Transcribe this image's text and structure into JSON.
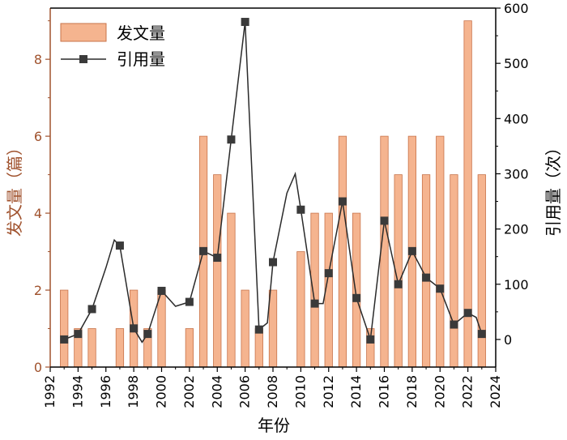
{
  "chart_data": {
    "type": "bar+line",
    "xlabel": "年份",
    "ylabel_left": "发文量（篇）",
    "ylabel_right": "引用量（次）",
    "x_ticks": [
      "1992",
      "1994",
      "1996",
      "1998",
      "2000",
      "2002",
      "2004",
      "2006",
      "2008",
      "2010",
      "2012",
      "2014",
      "2016",
      "2018",
      "2020",
      "2022",
      "2024"
    ],
    "y_left_ticks": [
      "0",
      "2",
      "4",
      "6",
      "8"
    ],
    "y_right_ticks": [
      "0",
      "100",
      "200",
      "300",
      "400",
      "500",
      "600"
    ],
    "xlim": [
      1992,
      2024
    ],
    "ylim_left": [
      0,
      9.33
    ],
    "ylim_right": [
      -50,
      600
    ],
    "colors": {
      "bar_fill": "#f5b48f",
      "bar_stroke": "#c8734a",
      "line": "#2a2a2a",
      "marker": "#3a3a3a",
      "left_axis": "#a0522d",
      "right_axis": "#000000"
    },
    "legend": {
      "placement": "top-left",
      "items": [
        "发文量",
        "引用量"
      ]
    },
    "series": [
      {
        "name": "发文量",
        "kind": "bar",
        "axis": "left",
        "x": [
          1993,
          1994,
          1995,
          1997,
          1998,
          1999,
          2000,
          2002,
          2003,
          2004,
          2005,
          2006,
          2007,
          2008,
          2010,
          2011,
          2012,
          2013,
          2014,
          2015,
          2016,
          2017,
          2018,
          2019,
          2020,
          2021,
          2022,
          2023
        ],
        "values": [
          2,
          1,
          1,
          1,
          2,
          1,
          2,
          1,
          6,
          5,
          4,
          2,
          1,
          2,
          3,
          4,
          4,
          6,
          4,
          1,
          6,
          5,
          6,
          5,
          6,
          5,
          9,
          5
        ]
      },
      {
        "name": "引用量",
        "kind": "line",
        "axis": "right",
        "x": [
          1993,
          1994,
          1995,
          1997,
          1998,
          1999,
          2000,
          2002,
          2003,
          2004,
          2005,
          2006,
          2007,
          2008,
          2010,
          2011,
          2012,
          2013,
          2014,
          2015,
          2016,
          2017,
          2018,
          2019,
          2020,
          2021,
          2022,
          2023
        ],
        "values": [
          0,
          10,
          55,
          170,
          20,
          10,
          88,
          68,
          160,
          148,
          362,
          575,
          18,
          140,
          235,
          65,
          120,
          250,
          75,
          0,
          215,
          100,
          160,
          112,
          92,
          27,
          48,
          10
        ]
      }
    ],
    "line_path_extra": {
      "comment_free": true,
      "x": [
        1993,
        1994,
        1995,
        1996,
        1996.6,
        1997,
        1998,
        1998.6,
        1999,
        2000,
        2001,
        2002,
        2003,
        2004,
        2005,
        2006,
        2007,
        2007.6,
        2008,
        2009,
        2009.6,
        2010,
        2011,
        2011.6,
        2012,
        2013,
        2014,
        2015,
        2016,
        2017,
        2018,
        2019,
        2020,
        2021,
        2022,
        2022.6,
        2023
      ],
      "values": [
        0,
        10,
        55,
        130,
        180,
        170,
        20,
        -5,
        10,
        88,
        60,
        68,
        160,
        148,
        362,
        575,
        18,
        30,
        140,
        265,
        300,
        235,
        65,
        65,
        120,
        250,
        75,
        0,
        215,
        100,
        160,
        112,
        92,
        27,
        48,
        40,
        10
      ]
    }
  }
}
